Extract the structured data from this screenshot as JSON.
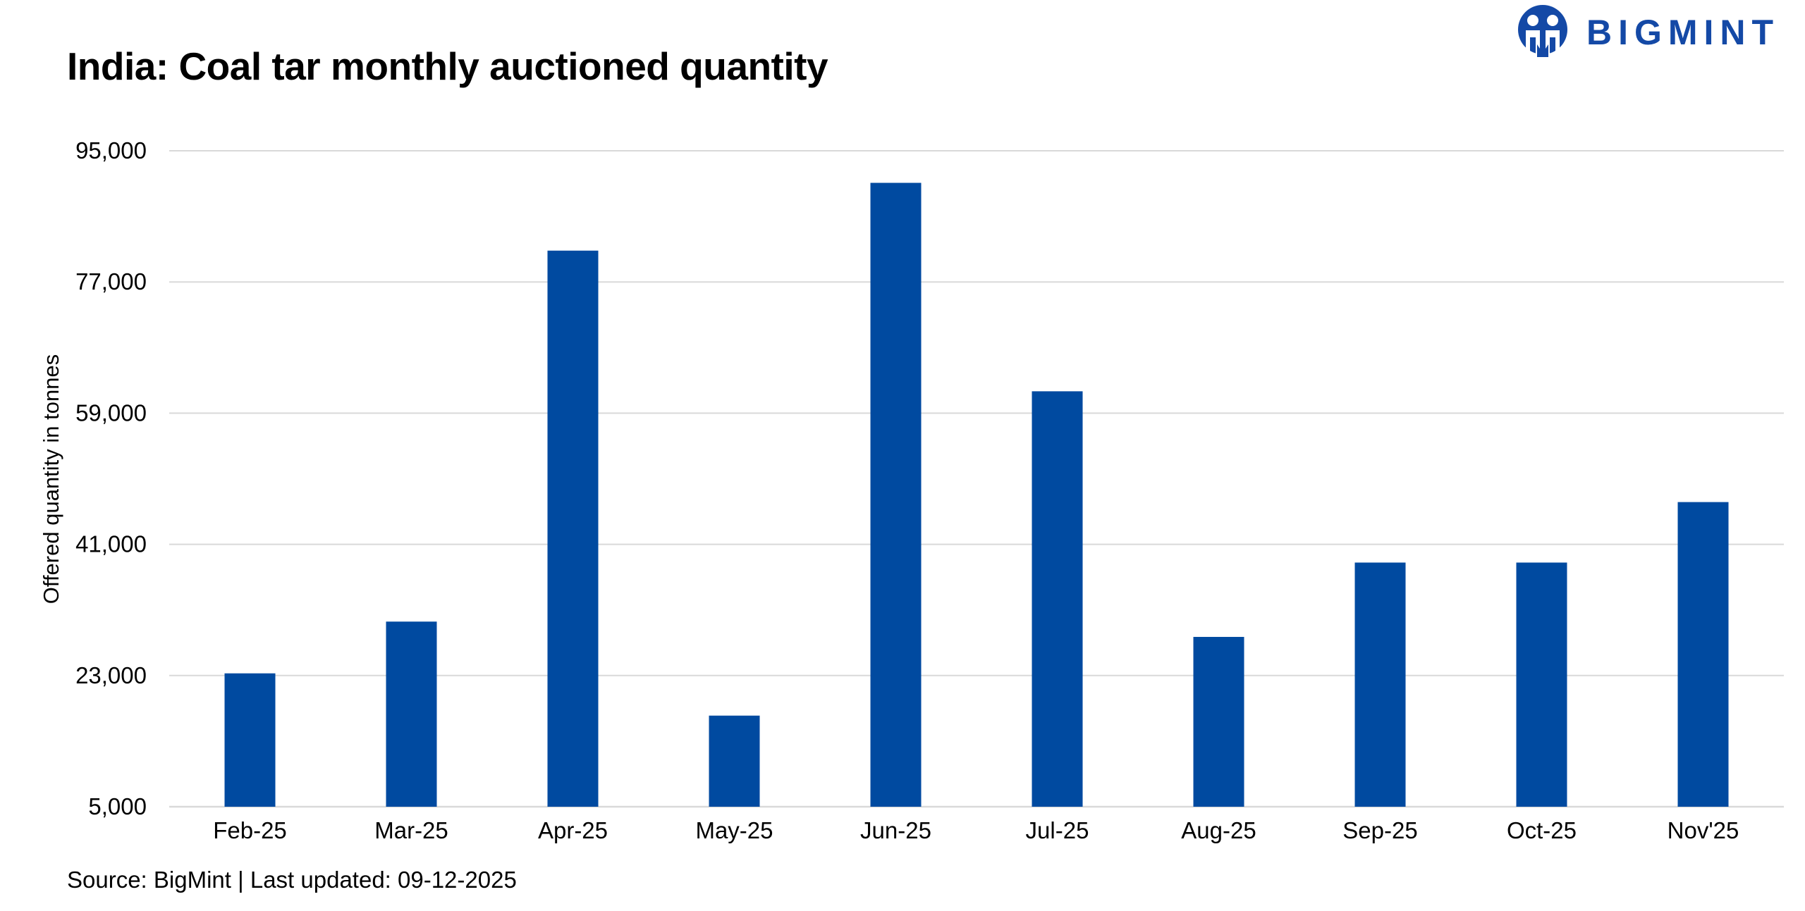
{
  "header": {
    "title": "India: Coal tar monthly auctioned quantity"
  },
  "logo": {
    "text": "BIGMINT",
    "brand_color": "#1449a6"
  },
  "footer": {
    "source": "Source: BigMint | Last updated: 09-12-2025"
  },
  "chart_data": {
    "type": "bar",
    "title": "India: Coal tar monthly auctioned quantity",
    "xlabel": "",
    "ylabel": "Offered quantity in tonnes",
    "categories": [
      "Feb-25",
      "Mar-25",
      "Apr-25",
      "May-25",
      "Jun-25",
      "Jul-25",
      "Aug-25",
      "Sep-25",
      "Oct-25",
      "Nov'25"
    ],
    "values": [
      23300,
      30400,
      81300,
      17500,
      90600,
      62000,
      28300,
      38500,
      38500,
      46800
    ],
    "ylim": [
      5000,
      95000
    ],
    "yticks": [
      5000,
      23000,
      41000,
      59000,
      77000,
      95000
    ],
    "ytick_labels": [
      "5,000",
      "23,000",
      "41,000",
      "59,000",
      "77,000",
      "95,000"
    ],
    "bar_color": "#004aa0",
    "grid": true,
    "grid_color": "#d9d9d9",
    "legend": "none"
  }
}
